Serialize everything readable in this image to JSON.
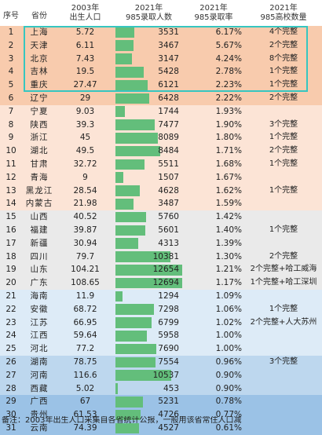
{
  "colors": {
    "group_orange": "#f8cbad",
    "group_peach": "#fce4d6",
    "group_grey": "#eaeaea",
    "group_lightblue": "#ddebf7",
    "group_blue": "#bdd7ee",
    "group_darkblue": "#9bc2e6",
    "bar_green": "#63be7b",
    "highlight_border": "#36c6c0"
  },
  "header": {
    "rank": "序号",
    "province": "省份",
    "births_line1": "2003年",
    "births_line2": "出生人口",
    "admitted_line1": "2021年",
    "admitted_line2": "985录取人数",
    "rate_line1": "2021年",
    "rate_line2": "985录取率",
    "schools_line1": "2021年",
    "schools_line2": "985高校数量"
  },
  "bar_scale_max": 12654,
  "rows": [
    {
      "rank": "1",
      "province": "上海",
      "births": "5.72",
      "admitted": "3531",
      "rate": "6.17%",
      "schools": "4个完整",
      "group": "group_orange"
    },
    {
      "rank": "2",
      "province": "天津",
      "births": "6.11",
      "admitted": "3467",
      "rate": "5.67%",
      "schools": "2个完整",
      "group": "group_orange"
    },
    {
      "rank": "3",
      "province": "北京",
      "births": "7.43",
      "admitted": "3147",
      "rate": "4.24%",
      "schools": "8个完整",
      "group": "group_orange"
    },
    {
      "rank": "4",
      "province": "吉林",
      "births": "19.5",
      "admitted": "5428",
      "rate": "2.78%",
      "schools": "1个完整",
      "group": "group_orange"
    },
    {
      "rank": "5",
      "province": "重庆",
      "births": "27.47",
      "admitted": "6121",
      "rate": "2.23%",
      "schools": "1个完整",
      "group": "group_orange"
    },
    {
      "rank": "6",
      "province": "辽宁",
      "births": "29",
      "admitted": "6428",
      "rate": "2.22%",
      "schools": "2个完整",
      "group": "group_orange"
    },
    {
      "rank": "7",
      "province": "宁夏",
      "births": "9.03",
      "admitted": "1744",
      "rate": "1.93%",
      "schools": "",
      "group": "group_peach"
    },
    {
      "rank": "8",
      "province": "陕西",
      "births": "39.3",
      "admitted": "7477",
      "rate": "1.90%",
      "schools": "3个完整",
      "group": "group_peach"
    },
    {
      "rank": "9",
      "province": "浙江",
      "births": "45",
      "admitted": "8089",
      "rate": "1.80%",
      "schools": "1个完整",
      "group": "group_peach"
    },
    {
      "rank": "10",
      "province": "湖北",
      "births": "49.5",
      "admitted": "8484",
      "rate": "1.71%",
      "schools": "2个完整",
      "group": "group_peach"
    },
    {
      "rank": "11",
      "province": "甘肃",
      "births": "32.72",
      "admitted": "5511",
      "rate": "1.68%",
      "schools": "1个完整",
      "group": "group_peach"
    },
    {
      "rank": "12",
      "province": "青海",
      "births": "9",
      "admitted": "1507",
      "rate": "1.67%",
      "schools": "",
      "group": "group_peach"
    },
    {
      "rank": "13",
      "province": "黑龙江",
      "births": "28.54",
      "admitted": "4628",
      "rate": "1.62%",
      "schools": "1个完整",
      "group": "group_peach"
    },
    {
      "rank": "14",
      "province": "内蒙古",
      "births": "21.98",
      "admitted": "3487",
      "rate": "1.59%",
      "schools": "",
      "group": "group_peach"
    },
    {
      "rank": "15",
      "province": "山西",
      "births": "40.52",
      "admitted": "5760",
      "rate": "1.42%",
      "schools": "",
      "group": "group_grey"
    },
    {
      "rank": "16",
      "province": "福建",
      "births": "39.87",
      "admitted": "5601",
      "rate": "1.40%",
      "schools": "1个完整",
      "group": "group_grey"
    },
    {
      "rank": "17",
      "province": "新疆",
      "births": "30.94",
      "admitted": "4313",
      "rate": "1.39%",
      "schools": "",
      "group": "group_grey"
    },
    {
      "rank": "18",
      "province": "四川",
      "births": "79.7",
      "admitted": "10381",
      "rate": "1.30%",
      "schools": "2个完整",
      "group": "group_grey"
    },
    {
      "rank": "19",
      "province": "山东",
      "births": "104.21",
      "admitted": "12654",
      "rate": "1.21%",
      "schools": "2个完整+哈工威海",
      "group": "group_grey"
    },
    {
      "rank": "20",
      "province": "广东",
      "births": "108.65",
      "admitted": "12694",
      "rate": "1.17%",
      "schools": "1个完整+哈工深圳",
      "group": "group_grey"
    },
    {
      "rank": "21",
      "province": "海南",
      "births": "11.9",
      "admitted": "1294",
      "rate": "1.09%",
      "schools": "",
      "group": "group_lightblue"
    },
    {
      "rank": "22",
      "province": "安徽",
      "births": "68.72",
      "admitted": "7298",
      "rate": "1.06%",
      "schools": "1个完整",
      "group": "group_lightblue"
    },
    {
      "rank": "23",
      "province": "江苏",
      "births": "66.95",
      "admitted": "6799",
      "rate": "1.02%",
      "schools": "2个完整+人大苏州",
      "group": "group_lightblue"
    },
    {
      "rank": "24",
      "province": "江西",
      "births": "59.64",
      "admitted": "5958",
      "rate": "1.00%",
      "schools": "",
      "group": "group_lightblue"
    },
    {
      "rank": "25",
      "province": "河北",
      "births": "77.2",
      "admitted": "7690",
      "rate": "1.00%",
      "schools": "",
      "group": "group_lightblue"
    },
    {
      "rank": "26",
      "province": "湖南",
      "births": "78.75",
      "admitted": "7554",
      "rate": "0.96%",
      "schools": "3个完整",
      "group": "group_blue"
    },
    {
      "rank": "27",
      "province": "河南",
      "births": "116.6",
      "admitted": "10537",
      "rate": "0.90%",
      "schools": "",
      "group": "group_blue"
    },
    {
      "rank": "28",
      "province": "西藏",
      "births": "5.02",
      "admitted": "453",
      "rate": "0.90%",
      "schools": "",
      "group": "group_blue"
    },
    {
      "rank": "29",
      "province": "广西",
      "births": "67",
      "admitted": "5231",
      "rate": "0.78%",
      "schools": "",
      "group": "group_darkblue"
    },
    {
      "rank": "30",
      "province": "贵州",
      "births": "61.53",
      "admitted": "4726",
      "rate": "0.77%",
      "schools": "",
      "group": "group_darkblue"
    },
    {
      "rank": "31",
      "province": "云南",
      "births": "74.39",
      "admitted": "4527",
      "rate": "0.61%",
      "schools": "",
      "group": "group_darkblue"
    }
  ],
  "footer": {
    "note": "备注：2003年出生人口采集自各省统计公报，一般用该省常住人口减"
  }
}
